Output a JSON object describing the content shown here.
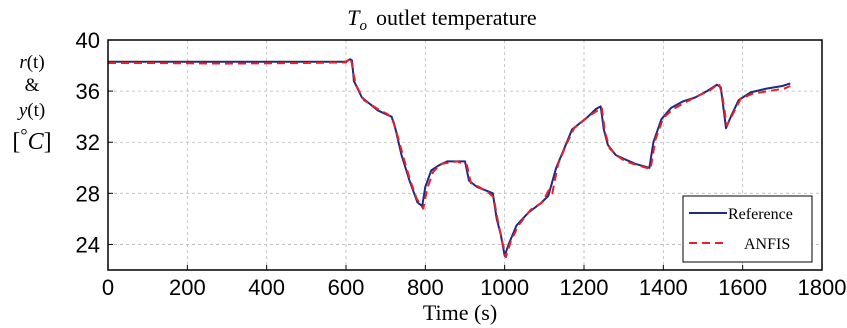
{
  "chart_data": {
    "type": "line",
    "title": {
      "symbol": "T",
      "subscript": "o",
      "text": "outlet temperature"
    },
    "xlabel": "Time (s)",
    "ylabel": {
      "line1_italic": "r",
      "line1_rest": "(t)",
      "line2": "&",
      "line3_italic": "y",
      "line3_rest": "(t)",
      "line4_bracket_open": "[",
      "line4_degree": "°",
      "line4_unit": "C",
      "line4_bracket_close": "]"
    },
    "xlim": [
      0,
      1800
    ],
    "ylim": [
      22,
      40
    ],
    "xticks": [
      "0",
      "200",
      "400",
      "600",
      "800",
      "1000",
      "1200",
      "1400",
      "1600",
      "1800"
    ],
    "yticks": [
      "24",
      "28",
      "32",
      "36",
      "40"
    ],
    "grid": true,
    "legend_position": "bottom-right",
    "colors": {
      "reference": "#1f2a80",
      "anfis": "#e8202a"
    },
    "series": [
      {
        "name": "Reference",
        "style": "solid",
        "points": [
          [
            0,
            38.3
          ],
          [
            100,
            38.3
          ],
          [
            300,
            38.3
          ],
          [
            500,
            38.3
          ],
          [
            600,
            38.3
          ],
          [
            610,
            38.5
          ],
          [
            615,
            38.4
          ],
          [
            620,
            36.8
          ],
          [
            640,
            35.5
          ],
          [
            660,
            35.0
          ],
          [
            680,
            34.5
          ],
          [
            700,
            34.2
          ],
          [
            715,
            34.0
          ],
          [
            725,
            33.0
          ],
          [
            740,
            31.0
          ],
          [
            760,
            29.0
          ],
          [
            780,
            27.3
          ],
          [
            792,
            27.0
          ],
          [
            800,
            28.5
          ],
          [
            815,
            29.8
          ],
          [
            835,
            30.2
          ],
          [
            855,
            30.5
          ],
          [
            875,
            30.5
          ],
          [
            900,
            30.5
          ],
          [
            910,
            29.0
          ],
          [
            930,
            28.5
          ],
          [
            955,
            28.2
          ],
          [
            970,
            28.0
          ],
          [
            980,
            26.0
          ],
          [
            990,
            24.8
          ],
          [
            1000,
            23.1
          ],
          [
            1010,
            24.0
          ],
          [
            1030,
            25.5
          ],
          [
            1060,
            26.5
          ],
          [
            1090,
            27.2
          ],
          [
            1110,
            27.8
          ],
          [
            1130,
            30.0
          ],
          [
            1150,
            31.5
          ],
          [
            1170,
            33.0
          ],
          [
            1190,
            33.5
          ],
          [
            1210,
            34.0
          ],
          [
            1230,
            34.6
          ],
          [
            1242,
            34.8
          ],
          [
            1250,
            33.0
          ],
          [
            1260,
            31.8
          ],
          [
            1280,
            31.0
          ],
          [
            1300,
            30.7
          ],
          [
            1330,
            30.3
          ],
          [
            1365,
            30.0
          ],
          [
            1375,
            32.0
          ],
          [
            1395,
            33.8
          ],
          [
            1420,
            34.7
          ],
          [
            1450,
            35.2
          ],
          [
            1480,
            35.5
          ],
          [
            1510,
            36.0
          ],
          [
            1535,
            36.5
          ],
          [
            1545,
            36.3
          ],
          [
            1558,
            33.1
          ],
          [
            1570,
            34.0
          ],
          [
            1590,
            35.3
          ],
          [
            1620,
            35.9
          ],
          [
            1660,
            36.2
          ],
          [
            1700,
            36.4
          ],
          [
            1720,
            36.6
          ]
        ]
      },
      {
        "name": "ANFIS",
        "style": "dashed",
        "points": [
          [
            0,
            38.2
          ],
          [
            100,
            38.2
          ],
          [
            300,
            38.15
          ],
          [
            500,
            38.2
          ],
          [
            600,
            38.25
          ],
          [
            612,
            38.6
          ],
          [
            618,
            37.5
          ],
          [
            625,
            36.5
          ],
          [
            645,
            35.3
          ],
          [
            665,
            34.9
          ],
          [
            685,
            34.5
          ],
          [
            705,
            34.2
          ],
          [
            718,
            33.8
          ],
          [
            730,
            32.5
          ],
          [
            745,
            30.8
          ],
          [
            762,
            29.0
          ],
          [
            778,
            27.6
          ],
          [
            795,
            26.8
          ],
          [
            805,
            28.4
          ],
          [
            820,
            29.7
          ],
          [
            840,
            30.3
          ],
          [
            860,
            30.4
          ],
          [
            880,
            30.5
          ],
          [
            905,
            30.2
          ],
          [
            915,
            28.8
          ],
          [
            935,
            28.5
          ],
          [
            958,
            28.1
          ],
          [
            972,
            27.7
          ],
          [
            982,
            26.0
          ],
          [
            992,
            24.5
          ],
          [
            1003,
            23.0
          ],
          [
            1015,
            24.2
          ],
          [
            1035,
            25.5
          ],
          [
            1065,
            26.7
          ],
          [
            1095,
            27.3
          ],
          [
            1112,
            28.3
          ],
          [
            1120,
            28.0
          ],
          [
            1135,
            30.3
          ],
          [
            1155,
            31.8
          ],
          [
            1175,
            33.1
          ],
          [
            1195,
            33.6
          ],
          [
            1215,
            34.1
          ],
          [
            1235,
            34.5
          ],
          [
            1245,
            34.7
          ],
          [
            1253,
            32.8
          ],
          [
            1265,
            31.5
          ],
          [
            1285,
            30.9
          ],
          [
            1305,
            30.5
          ],
          [
            1335,
            30.2
          ],
          [
            1368,
            29.9
          ],
          [
            1380,
            32.2
          ],
          [
            1400,
            33.9
          ],
          [
            1425,
            34.6
          ],
          [
            1455,
            35.1
          ],
          [
            1485,
            35.6
          ],
          [
            1515,
            36.0
          ],
          [
            1540,
            36.6
          ],
          [
            1548,
            35.8
          ],
          [
            1560,
            33.3
          ],
          [
            1575,
            34.2
          ],
          [
            1595,
            35.4
          ],
          [
            1625,
            35.8
          ],
          [
            1665,
            36.0
          ],
          [
            1705,
            36.2
          ],
          [
            1720,
            36.4
          ]
        ]
      }
    ]
  }
}
